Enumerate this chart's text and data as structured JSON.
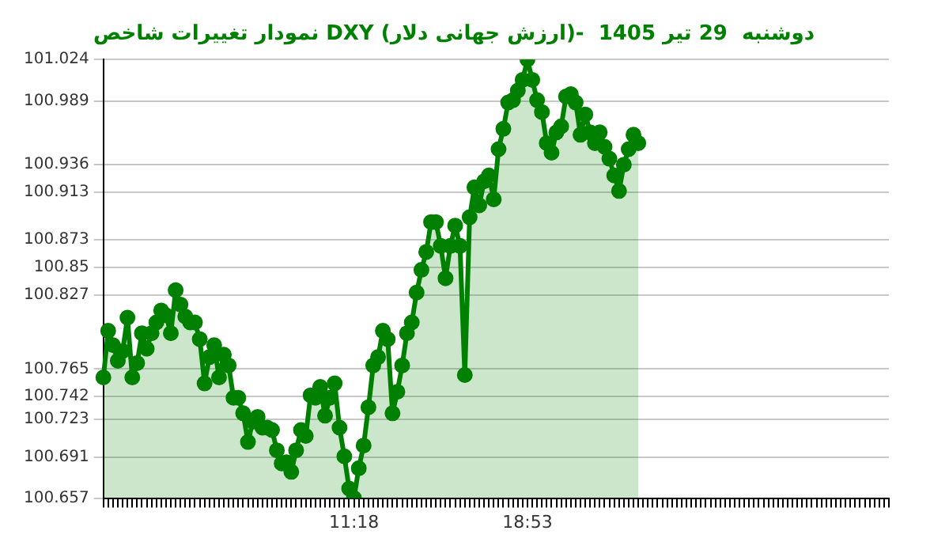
{
  "chart_data": {
    "type": "area",
    "title": "نمودار تغییرات شاخص DXY (ارزش جهانی دلار)-  دوشنبه  29 تیر 1405",
    "categories": [
      null,
      null,
      null,
      null,
      null,
      null,
      null,
      null,
      null,
      null,
      null,
      null,
      null,
      null,
      null,
      null,
      null,
      null,
      null,
      null,
      null,
      null,
      null,
      null,
      null,
      null,
      null,
      null,
      null,
      null,
      null,
      null,
      null,
      null,
      null,
      null,
      null,
      null,
      null,
      null,
      null,
      null,
      null,
      null,
      null,
      null,
      null,
      null,
      null,
      null,
      null,
      null,
      "11:18",
      null,
      null,
      null,
      null,
      null,
      null,
      null,
      null,
      null,
      null,
      null,
      null,
      null,
      null,
      null,
      null,
      null,
      null,
      null,
      null,
      null,
      null,
      null,
      null,
      null,
      null,
      null,
      null,
      null,
      null,
      null,
      null,
      null,
      null,
      null,
      "18:53",
      null,
      null,
      null,
      null,
      null,
      null,
      null,
      null,
      null,
      null,
      null,
      null,
      null,
      null,
      null,
      null,
      null,
      null,
      null,
      null,
      null,
      null,
      null,
      null,
      null,
      null,
      null,
      null,
      null,
      null,
      null,
      null,
      null,
      null,
      null,
      null,
      null,
      null,
      null,
      null,
      null,
      null,
      null,
      null,
      null,
      null,
      null,
      null,
      null,
      null,
      null,
      null,
      null,
      null,
      null,
      null,
      null,
      null,
      null,
      null,
      null,
      null,
      null,
      null,
      null,
      null,
      null,
      null,
      null,
      null,
      null,
      null,
      null,
      null,
      null
    ],
    "series": [
      {
        "color": "#008000",
        "values": [
          100.758,
          100.797,
          100.785,
          100.772,
          100.78,
          100.808,
          100.758,
          100.77,
          100.795,
          100.782,
          100.795,
          100.804,
          100.814,
          100.81,
          100.795,
          100.831,
          100.819,
          100.809,
          100.804,
          100.804,
          100.79,
          100.753,
          100.775,
          100.785,
          100.758,
          100.777,
          100.768,
          100.741,
          100.741,
          100.728,
          100.704,
          100.721,
          100.725,
          100.716,
          100.716,
          100.714,
          100.697,
          100.686,
          100.687,
          100.679,
          100.697,
          100.714,
          100.709,
          100.743,
          100.741,
          100.75,
          100.726,
          100.741,
          100.753,
          100.716,
          100.692,
          100.665,
          100.657,
          100.682,
          100.701,
          100.733,
          100.768,
          100.775,
          100.797,
          100.79,
          100.728,
          100.746,
          100.768,
          100.795,
          100.804,
          100.829,
          100.848,
          100.863,
          100.888,
          100.888,
          100.868,
          100.841,
          100.868,
          100.885,
          100.868,
          100.76,
          100.892,
          100.917,
          100.902,
          100.922,
          100.927,
          100.907,
          100.949,
          100.966,
          100.988,
          100.99,
          100.998,
          101.007,
          101.024,
          101.007,
          100.99,
          100.98,
          100.954,
          100.946,
          100.963,
          100.968,
          100.993,
          100.995,
          100.988,
          100.961,
          100.978,
          100.963,
          100.954,
          100.963,
          100.951,
          100.941,
          100.927,
          100.914,
          100.936,
          100.949,
          100.961,
          100.954,
          null,
          null,
          null,
          null,
          null,
          null,
          null,
          null,
          null,
          null,
          null,
          null,
          null,
          null,
          null,
          null,
          null,
          null,
          null,
          null,
          null,
          null,
          null,
          null,
          null,
          null,
          null,
          null,
          null,
          null,
          null,
          null,
          null,
          null,
          null,
          null,
          null,
          null,
          null,
          null,
          null,
          null,
          null,
          null,
          null,
          null,
          null,
          null,
          null,
          null,
          null,
          null
        ]
      }
    ],
    "ylim": [
      100.657,
      101.024
    ],
    "yticks": [
      100.657,
      100.691,
      100.723,
      100.742,
      100.765,
      100.827,
      100.85,
      100.873,
      100.913,
      100.936,
      100.989,
      101.024
    ],
    "grid": "y",
    "marker": "circle",
    "legend": false
  }
}
